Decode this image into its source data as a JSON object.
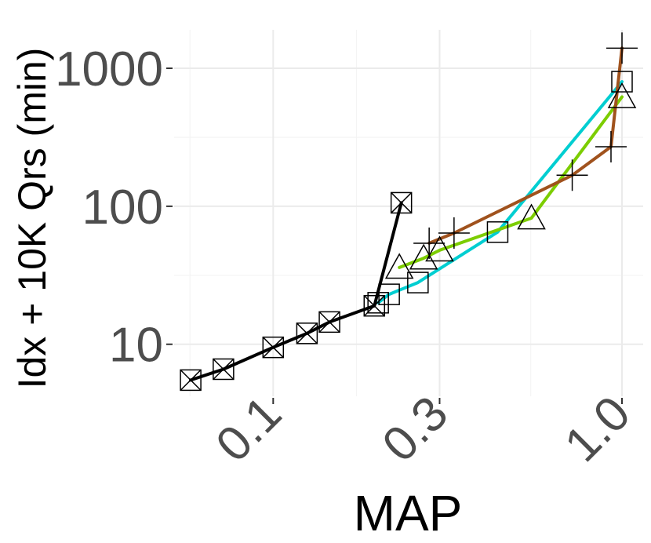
{
  "chart_data": {
    "type": "line",
    "title": "",
    "xlabel": "MAP",
    "ylabel": "Idx + 10K Qrs (min)",
    "x_scale": "log",
    "y_scale": "log",
    "xlim": [
      0.052,
      1.15
    ],
    "ylim": [
      4.2,
      1900
    ],
    "x_ticks": [
      0.1,
      0.3,
      1.0
    ],
    "x_tick_labels": [
      "0.1",
      "0.3",
      "1.0"
    ],
    "y_ticks": [
      10,
      100,
      1000
    ],
    "y_tick_labels": [
      "10",
      "100",
      "1000"
    ],
    "grid": true,
    "legend": "none",
    "series": [
      {
        "color": "#000000",
        "marker": "boxed-x",
        "x": [
          0.058,
          0.072,
          0.1,
          0.125,
          0.145,
          0.195,
          0.233
        ],
        "y": [
          5.5,
          6.6,
          9.5,
          12,
          14.5,
          19,
          106
        ]
      },
      {
        "color": "#00ced1",
        "marker": "square",
        "x": [
          0.2,
          0.215,
          0.26,
          0.44,
          1.0
        ],
        "y": [
          20,
          23,
          28,
          65,
          800
        ]
      },
      {
        "color": "#7ccd00",
        "marker": "triangle",
        "x": [
          0.23,
          0.27,
          0.3,
          0.55,
          1.0
        ],
        "y": [
          36,
          42,
          48,
          82,
          620
        ]
      },
      {
        "color": "#a0521d",
        "marker": "plus",
        "x": [
          0.28,
          0.33,
          0.72,
          0.93,
          1.0
        ],
        "y": [
          54,
          64,
          168,
          270,
          1400
        ]
      }
    ]
  }
}
